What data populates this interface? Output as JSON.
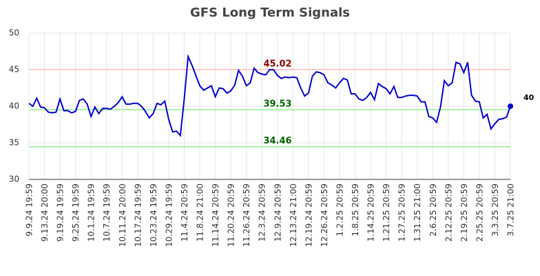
{
  "chart_data": {
    "type": "line",
    "title": "GFS Long Term Signals",
    "categories": [
      "9.9.24 19:59",
      null,
      null,
      null,
      "9.13.24 20:00",
      null,
      null,
      null,
      "9.19.24 19:59",
      null,
      null,
      null,
      "9.25.24 19:59",
      null,
      null,
      null,
      "10.1.24 19:59",
      null,
      null,
      null,
      "10.7.24 19:59",
      null,
      null,
      null,
      "10.11.24 20:00",
      null,
      null,
      null,
      "10.17.24 19:59",
      null,
      null,
      null,
      "10.23.24 19:59",
      null,
      null,
      null,
      "10.29.24 19:59",
      null,
      null,
      null,
      "11.4.24 20:59",
      null,
      null,
      null,
      "11.8.24 21:00",
      null,
      null,
      null,
      "11.14.24 20:59",
      null,
      null,
      null,
      "11.20.24 20:59",
      null,
      null,
      null,
      "11.26.24 20:59",
      null,
      null,
      null,
      "12.3.24 20:59",
      null,
      null,
      null,
      "12.9.24 20:59",
      null,
      null,
      null,
      "12.13.24 21:00",
      null,
      null,
      null,
      "12.19.24 20:59",
      null,
      null,
      null,
      "12.26.24 20:59",
      null,
      null,
      null,
      "1.2.25 20:59",
      null,
      null,
      null,
      "1.8.25 20:59",
      null,
      null,
      null,
      "1.14.25 20:59",
      null,
      null,
      null,
      "1.21.25 20:59",
      null,
      null,
      null,
      "1.27.25 20:59",
      null,
      null,
      null,
      "1.31.25 21:00",
      null,
      null,
      null,
      "2.6.25 20:59",
      null,
      null,
      null,
      "2.12.25 20:59",
      null,
      null,
      null,
      "2.19.25 20:59",
      null,
      null,
      null,
      "2.25.25 20:59",
      null,
      null,
      null,
      "3.3.25 20:59",
      null,
      null,
      null,
      "3.7.25 21:00"
    ],
    "values": [
      40.4,
      40.0,
      41.1,
      39.9,
      39.8,
      39.2,
      39.1,
      39.2,
      41.0,
      39.4,
      39.4,
      39.1,
      39.3,
      40.8,
      41.0,
      40.3,
      38.6,
      39.9,
      39.0,
      39.7,
      39.7,
      39.6,
      40.0,
      40.5,
      41.3,
      40.3,
      40.3,
      40.4,
      40.4,
      40.0,
      39.3,
      38.4,
      39.0,
      40.4,
      40.2,
      40.7,
      38.2,
      36.5,
      36.6,
      36.0,
      41.0,
      46.8,
      45.6,
      44.2,
      42.8,
      42.2,
      42.5,
      42.8,
      41.3,
      42.5,
      42.4,
      41.8,
      42.1,
      42.9,
      44.9,
      44.1,
      42.8,
      43.2,
      45.2,
      44.6,
      44.4,
      44.3,
      45.0,
      45.0,
      44.2,
      43.8,
      44.0,
      43.9,
      44.0,
      43.9,
      42.5,
      41.4,
      41.8,
      44.1,
      44.7,
      44.6,
      44.3,
      43.2,
      42.9,
      42.5,
      43.2,
      43.8,
      43.6,
      41.7,
      41.7,
      41.0,
      40.8,
      41.2,
      41.9,
      40.9,
      43.1,
      42.7,
      42.4,
      41.7,
      42.7,
      41.2,
      41.2,
      41.4,
      41.5,
      41.5,
      41.4,
      40.6,
      40.6,
      38.6,
      38.4,
      37.8,
      39.9,
      43.5,
      42.8,
      43.2,
      46.0,
      45.8,
      44.6,
      46.0,
      41.5,
      40.7,
      40.6,
      38.4,
      38.9,
      36.9,
      37.6,
      38.2,
      38.3,
      38.5,
      40.0
    ],
    "color": "#0000cc",
    "ylim": [
      30,
      50
    ],
    "yticks": [
      30,
      35,
      40,
      45,
      50
    ],
    "grid": true,
    "reference_lines": [
      {
        "value": 45.02,
        "color": "#ffbbbb",
        "label_color": "#8b0000"
      },
      {
        "value": 39.53,
        "color": "#90ee90",
        "label_color": "#006400"
      },
      {
        "value": 34.46,
        "color": "#90ee90",
        "label_color": "#006400"
      }
    ]
  }
}
